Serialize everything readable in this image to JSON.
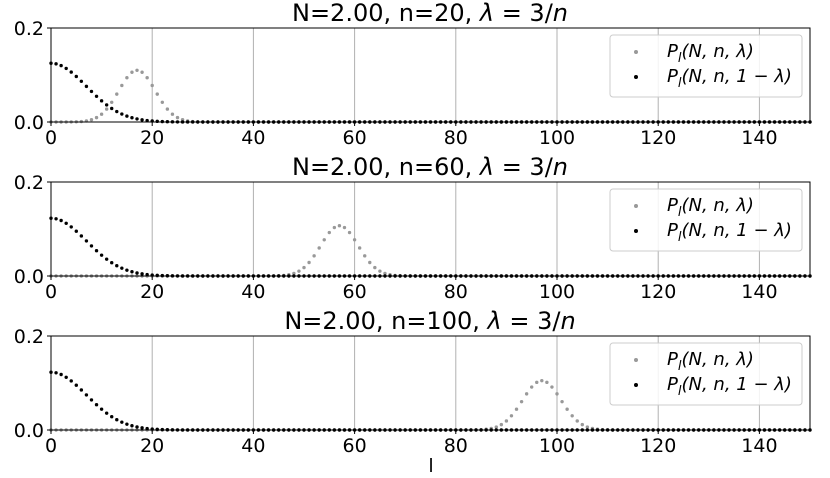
{
  "chart_data": [
    {
      "type": "scatter",
      "title": "N=2.00, n=20, λ = 3/n",
      "xlim": [
        0,
        150
      ],
      "ylim": [
        0,
        0.2
      ],
      "xticks": [
        0,
        20,
        40,
        60,
        80,
        100,
        120,
        140
      ],
      "yticks": [
        0.0,
        0.2
      ],
      "grid": "vertical",
      "legend_position": "top-right",
      "series": [
        {
          "name": "P_l(N, n, λ)",
          "color": "#999999",
          "distribution": "peak",
          "peak_x": 17,
          "peak_y": 0.11,
          "sigma": 3.6
        },
        {
          "name": "P_l(N, n, 1−λ)",
          "color": "#000000",
          "distribution": "half-peak",
          "peak_x": 0,
          "peak_y": 0.125,
          "sigma": 7.0
        }
      ]
    },
    {
      "type": "scatter",
      "title": "N=2.00, n=60, λ = 3/n",
      "xlim": [
        0,
        150
      ],
      "ylim": [
        0,
        0.2
      ],
      "xticks": [
        0,
        20,
        40,
        60,
        80,
        100,
        120,
        140
      ],
      "yticks": [
        0.0,
        0.2
      ],
      "grid": "vertical",
      "legend_position": "top-right",
      "series": [
        {
          "name": "P_l(N, n, λ)",
          "color": "#999999",
          "distribution": "peak",
          "peak_x": 57,
          "peak_y": 0.107,
          "sigma": 3.7
        },
        {
          "name": "P_l(N, n, 1−λ)",
          "color": "#000000",
          "distribution": "half-peak",
          "peak_x": 0,
          "peak_y": 0.123,
          "sigma": 7.0
        }
      ]
    },
    {
      "type": "scatter",
      "title": "N=2.00, n=100, λ = 3/n",
      "xlim": [
        0,
        150
      ],
      "ylim": [
        0,
        0.2
      ],
      "xticks": [
        0,
        20,
        40,
        60,
        80,
        100,
        120,
        140
      ],
      "yticks": [
        0.0,
        0.2
      ],
      "grid": "vertical",
      "legend_position": "top-right",
      "series": [
        {
          "name": "P_l(N, n, λ)",
          "color": "#999999",
          "distribution": "peak",
          "peak_x": 97,
          "peak_y": 0.105,
          "sigma": 3.8
        },
        {
          "name": "P_l(N, n, 1−λ)",
          "color": "#000000",
          "distribution": "half-peak",
          "peak_x": 0,
          "peak_y": 0.123,
          "sigma": 7.0
        }
      ]
    }
  ],
  "xlabel": "l",
  "legend_labels": {
    "series1": {
      "main": "P",
      "sub": "l",
      "args": "(N, n, λ)"
    },
    "series2": {
      "main": "P",
      "sub": "l",
      "args": "(N, n, 1 − λ)"
    }
  },
  "panel_titles": {
    "p1": {
      "prefix": "N=2.00, n=20, ",
      "lambda": "λ",
      "rest": " = 3/",
      "n": "n"
    },
    "p2": {
      "prefix": "N=2.00, n=60, ",
      "lambda": "λ",
      "rest": " = 3/",
      "n": "n"
    },
    "p3": {
      "prefix": "N=2.00, n=100, ",
      "lambda": "λ",
      "rest": " = 3/",
      "n": "n"
    }
  }
}
